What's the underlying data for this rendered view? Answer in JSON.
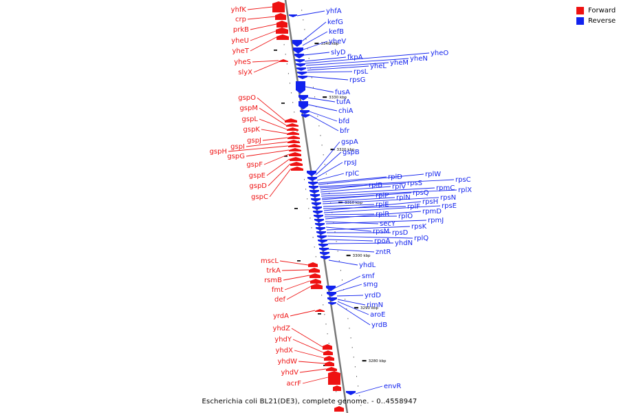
{
  "title": "Escherichia coli BL21(DE3), complete genome. - 0..4558947",
  "colors": {
    "forward": "#ee1111",
    "reverse": "#1122ee",
    "axis": "#777777",
    "tick": "#111111"
  },
  "legend": [
    {
      "label": "Forward",
      "color": "#ee1111"
    },
    {
      "label": "Reverse",
      "color": "#1122ee"
    }
  ],
  "axis_ticks": [
    "3340 kbp",
    "3330 kbp",
    "3320 kbp",
    "3310 kbp",
    "3300 kbp",
    "3290 kbp",
    "3280 kbp"
  ],
  "forward_genes": [
    "yhfK",
    "crp",
    "prkB",
    "yheU",
    "yheT",
    "yheS",
    "slyX",
    "gspO",
    "gspM",
    "gspL",
    "gspK",
    "gspJ",
    "gspI",
    "gspH",
    "gspG",
    "gspF",
    "gspE",
    "gspD",
    "gspC",
    "mscL",
    "trkA",
    "rsmB",
    "fmt",
    "def",
    "yrdA",
    "yhdZ",
    "yhdY",
    "yhdX",
    "yhdW",
    "yhdV",
    "acrF"
  ],
  "reverse_genes": [
    "yhfA",
    "kefG",
    "kefB",
    "yheV",
    "slyD",
    "fkpA",
    "yheO",
    "yheN",
    "yheM",
    "yheL",
    "rpsL",
    "rpsG",
    "fusA",
    "tufA",
    "chiA",
    "bfd",
    "bfr",
    "gspA",
    "gspB",
    "rpsJ",
    "rplC",
    "rplD",
    "rplW",
    "rpsC",
    "rpsS",
    "rplB",
    "rplV",
    "rpmC",
    "rplX",
    "rplP",
    "rpsQ",
    "rplN",
    "rpsN",
    "rplE",
    "rplF",
    "rpsH",
    "rpsE",
    "rplR",
    "rplO",
    "rpmD",
    "secY",
    "rpmJ",
    "rpsM",
    "rpsK",
    "rpsD",
    "rplQ",
    "rpoA",
    "yhdN",
    "zntR",
    "yhdL",
    "smf",
    "smg",
    "yrdD",
    "rimN",
    "aroE",
    "yrdB",
    "envR"
  ]
}
